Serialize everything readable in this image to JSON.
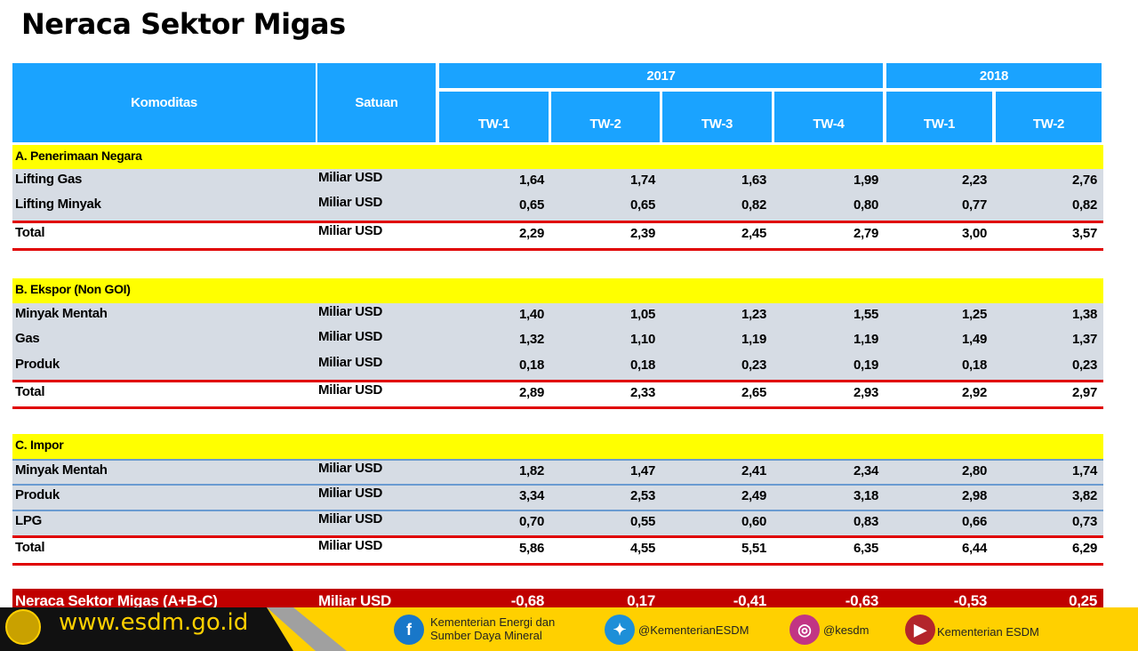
{
  "title": "Neraca Sektor Migas",
  "header": {
    "komoditas": "Komoditas",
    "satuan": "Satuan",
    "years": [
      "2017",
      "2018"
    ],
    "periods": [
      "TW-1",
      "TW-2",
      "TW-3",
      "TW-4",
      "TW-1",
      "TW-2"
    ]
  },
  "sections": [
    {
      "label": "A. Penerimaan Negara",
      "rows": [
        {
          "name": "Lifting Gas",
          "unit": "Miliar USD",
          "values": [
            "1,64",
            "1,74",
            "1,63",
            "1,99",
            "2,23",
            "2,76"
          ]
        },
        {
          "name": "Lifting Minyak",
          "unit": "Miliar USD",
          "values": [
            "0,65",
            "0,65",
            "0,82",
            "0,80",
            "0,77",
            "0,82"
          ]
        }
      ],
      "total": {
        "name": "Total",
        "unit": "Miliar USD",
        "values": [
          "2,29",
          "2,39",
          "2,45",
          "2,79",
          "3,00",
          "3,57"
        ]
      }
    },
    {
      "label": "B. Ekspor (Non GOI)",
      "rows": [
        {
          "name": "Minyak Mentah",
          "unit": "Miliar USD",
          "values": [
            "1,40",
            "1,05",
            "1,23",
            "1,55",
            "1,25",
            "1,38"
          ]
        },
        {
          "name": "Gas",
          "unit": "Miliar USD",
          "values": [
            "1,32",
            "1,10",
            "1,19",
            "1,19",
            "1,49",
            "1,37"
          ]
        },
        {
          "name": "Produk",
          "unit": "Miliar USD",
          "values": [
            "0,18",
            "0,18",
            "0,23",
            "0,19",
            "0,18",
            "0,23"
          ]
        }
      ],
      "total": {
        "name": "Total",
        "unit": "Miliar USD",
        "values": [
          "2,89",
          "2,33",
          "2,65",
          "2,93",
          "2,92",
          "2,97"
        ]
      }
    },
    {
      "label": "C. Impor",
      "rows": [
        {
          "name": "Minyak Mentah",
          "unit": "Miliar USD",
          "values": [
            "1,82",
            "1,47",
            "2,41",
            "2,34",
            "2,80",
            "1,74"
          ]
        },
        {
          "name": "Produk",
          "unit": "Miliar USD",
          "values": [
            "3,34",
            "2,53",
            "2,49",
            "3,18",
            "2,98",
            "3,82"
          ]
        },
        {
          "name": "LPG",
          "unit": "Miliar USD",
          "values": [
            "0,70",
            "0,55",
            "0,60",
            "0,83",
            "0,66",
            "0,73"
          ]
        }
      ],
      "total": {
        "name": "Total",
        "unit": "Miliar USD",
        "values": [
          "5,86",
          "4,55",
          "5,51",
          "6,35",
          "6,44",
          "6,29"
        ]
      }
    }
  ],
  "neraca": {
    "name": "Neraca Sektor Migas (A+B-C)",
    "unit": "Miliar USD",
    "values": [
      "-0,68",
      "0,17",
      "-0,41",
      "-0,63",
      "-0,53",
      "0,25"
    ]
  },
  "footer": {
    "url": "www.esdm.go.id",
    "facebook": "Kementerian Energi dan Sumber Daya Mineral",
    "twitter": "@KementerianESDM",
    "instagram": "@kesdm",
    "youtube": "Kementerian ESDM"
  },
  "colors": {
    "header": "#1aa3ff",
    "section": "#ffff00",
    "row": "#d6dce4",
    "rule": "#e00000",
    "neraca": "#c00000",
    "footer": "#ffd000"
  }
}
